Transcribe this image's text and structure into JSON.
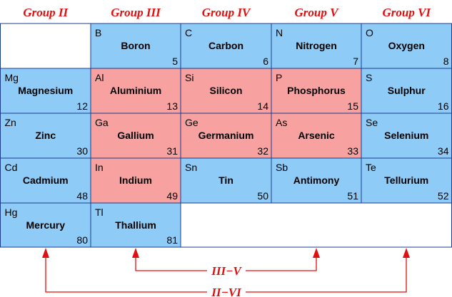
{
  "groups": [
    "Group II",
    "Group III",
    "Group IV",
    "Group V",
    "Group VI"
  ],
  "rows": [
    [
      {
        "symbol": "B",
        "name": "Boron",
        "number": "5",
        "color": "#8ecbf7"
      },
      {
        "symbol": "C",
        "name": "Carbon",
        "number": "6",
        "color": "#8ecbf7"
      },
      {
        "symbol": "N",
        "name": "Nitrogen",
        "number": "7",
        "color": "#8ecbf7"
      },
      {
        "symbol": "O",
        "name": "Oxygen",
        "number": "8",
        "color": "#8ecbf7"
      }
    ],
    [
      {
        "symbol": "Mg",
        "name": "Magnesium",
        "number": "12",
        "color": "#8ecbf7"
      },
      {
        "symbol": "Al",
        "name": "Aluminium",
        "number": "13",
        "color": "#f7a1a1"
      },
      {
        "symbol": "Si",
        "name": "Silicon",
        "number": "14",
        "color": "#f7a1a1"
      },
      {
        "symbol": "P",
        "name": "Phosphorus",
        "number": "15",
        "color": "#f7a1a1"
      },
      {
        "symbol": "S",
        "name": "Sulphur",
        "number": "16",
        "color": "#8ecbf7"
      }
    ],
    [
      {
        "symbol": "Zn",
        "name": "Zinc",
        "number": "30",
        "color": "#8ecbf7"
      },
      {
        "symbol": "Ga",
        "name": "Gallium",
        "number": "31",
        "color": "#f7a1a1"
      },
      {
        "symbol": "Ge",
        "name": "Germanium",
        "number": "32",
        "color": "#f7a1a1"
      },
      {
        "symbol": "As",
        "name": "Arsenic",
        "number": "33",
        "color": "#f7a1a1"
      },
      {
        "symbol": "Se",
        "name": "Selenium",
        "number": "34",
        "color": "#8ecbf7"
      }
    ],
    [
      {
        "symbol": "Cd",
        "name": "Cadmium",
        "number": "48",
        "color": "#8ecbf7"
      },
      {
        "symbol": "In",
        "name": "Indium",
        "number": "49",
        "color": "#f7a1a1"
      },
      {
        "symbol": "Sn",
        "name": "Tin",
        "number": "50",
        "color": "#8ecbf7"
      },
      {
        "symbol": "Sb",
        "name": "Antimony",
        "number": "51",
        "color": "#8ecbf7"
      },
      {
        "symbol": "Te",
        "name": "Tellurium",
        "number": "52",
        "color": "#8ecbf7"
      }
    ],
    [
      {
        "symbol": "Hg",
        "name": "Mercury",
        "number": "80",
        "color": "#8ecbf7"
      },
      {
        "symbol": "Tl",
        "name": "Thallium",
        "number": "81",
        "color": "#8ecbf7"
      }
    ]
  ],
  "pairs": [
    {
      "label": "III−V"
    },
    {
      "label": "II−VI"
    }
  ]
}
